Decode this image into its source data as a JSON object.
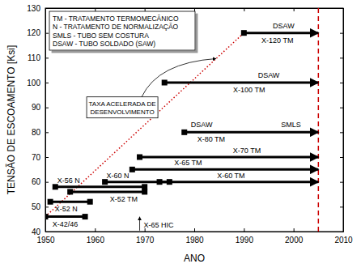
{
  "chart_data": {
    "type": "range",
    "x_label": "ANO",
    "y_label": "TENSÃO DE ESCOAMENTO [Ksi]",
    "xlim": [
      1950,
      2010
    ],
    "xticks": [
      1950,
      1960,
      1970,
      1980,
      1990,
      2000,
      2010
    ],
    "ylim": [
      40,
      130
    ],
    "yticks": [
      40,
      50,
      60,
      70,
      80,
      90,
      100,
      110,
      120,
      130
    ],
    "color": "#000000",
    "series": [
      {
        "name": "X-42/46",
        "value": 46,
        "x": [
          1950,
          1958
        ],
        "marker": "square"
      },
      {
        "name": "X-52 N",
        "value": 52,
        "x": [
          1951,
          1959
        ],
        "marker": "square"
      },
      {
        "name": "X-52 TM",
        "value": 56,
        "x": [
          1955,
          1970
        ],
        "marker": "square"
      },
      {
        "name": "X-56 N",
        "value": 58,
        "x": [
          1952,
          1970
        ],
        "marker": "square"
      },
      {
        "name": "X-60 N",
        "value": 60,
        "x": [
          1962,
          1975
        ],
        "marker": "square"
      },
      {
        "name": "X-60 TM",
        "value": 60,
        "x": [
          1973,
          2005
        ],
        "marker": "arrow"
      },
      {
        "name": "X-65 TM",
        "value": 65,
        "x": [
          1967.5,
          2005
        ],
        "marker": "arrow"
      },
      {
        "name": "X-70 TM",
        "value": 70,
        "x": [
          1969,
          2005
        ],
        "marker": "arrow"
      },
      {
        "name": "X-80 TM",
        "value": 80,
        "x": [
          1978,
          2005
        ],
        "marker": "arrow"
      },
      {
        "name": "X-100 TM",
        "value": 100,
        "x": [
          1974,
          2005
        ],
        "marker": "arrow"
      },
      {
        "name": "X-120 TM",
        "value": 120,
        "x": [
          1990,
          2005
        ],
        "marker": "arrow"
      }
    ],
    "trend": {
      "x": [
        1950,
        1990
      ],
      "y": [
        46,
        120
      ],
      "color": "#cc0000"
    },
    "reference_x": 2005,
    "annotations": [
      {
        "text": "DSAW",
        "x": 1981.5,
        "y": 82
      },
      {
        "text": "SMLS",
        "x": 1999.5,
        "y": 82
      },
      {
        "text": "DSAW",
        "x": 1995,
        "y": 102
      },
      {
        "text": "DSAW",
        "x": 1998,
        "y": 122
      },
      {
        "text": "X-65 HIC",
        "x": 1969,
        "y": 43,
        "marker": "arrow"
      },
      {
        "lines": [
          "TAXA ACELERADA DE",
          "DESENVOLVIMENTO"
        ],
        "x": 1965.5,
        "y": 90
      }
    ],
    "notes": [
      "TM - TRATAMENTO TERMOMECÂNICO",
      "N - TRATAMENTO DE NORMALIZAÇÃO",
      "SMLS - TUBO SEM COSTURA",
      "DSAW - TUBO SOLDADO (SAW)"
    ]
  }
}
